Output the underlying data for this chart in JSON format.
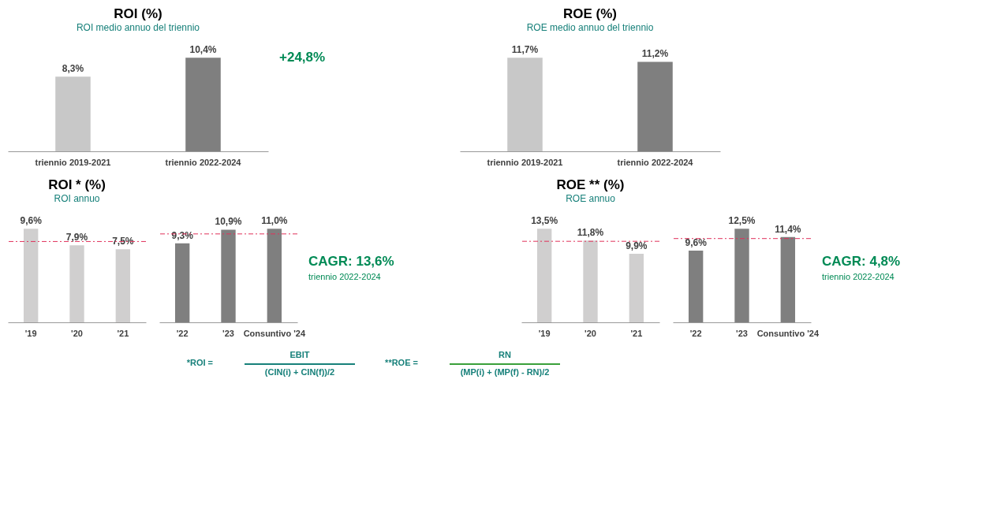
{
  "chart_data": [
    {
      "type": "bar",
      "title": "ROI (%)",
      "subtitle": "ROI medio annuo del triennio",
      "categories": [
        "triennio 2019-2021",
        "triennio 2022-2024"
      ],
      "values": [
        8.3,
        10.4
      ],
      "colors": [
        "#c8c8c8",
        "#7f7f7f"
      ],
      "value_labels": [
        "8,3%",
        "10,4%"
      ],
      "annotations": [
        "+24,8%"
      ]
    },
    {
      "type": "bar",
      "title": "ROE (%)",
      "subtitle": "ROE medio annuo del triennio",
      "categories": [
        "triennio 2019-2021",
        "triennio 2022-2024"
      ],
      "values": [
        11.7,
        11.2
      ],
      "colors": [
        "#c8c8c8",
        "#7f7f7f"
      ],
      "value_labels": [
        "11,7%",
        "11,2%"
      ]
    },
    {
      "type": "bar",
      "title": "ROI * (%)",
      "subtitle": "ROI annuo",
      "categories": [
        "'19",
        "'20",
        "'21"
      ],
      "values": [
        9.6,
        7.9,
        7.5
      ],
      "colors": [
        "#d0cfcf",
        "#d0cfcf",
        "#d0cfcf"
      ],
      "value_labels": [
        "9,6%",
        "7,9%",
        "7,5%"
      ],
      "ref_lines": [
        {
          "axis": "y",
          "value": 8.3,
          "color": "#e0315a",
          "line_style": "dashed"
        }
      ]
    },
    {
      "type": "bar",
      "categories": [
        "'22",
        "'23",
        "Consuntivo '24"
      ],
      "values": [
        9.3,
        10.9,
        11.0
      ],
      "colors": [
        "#7f7f7f",
        "#7f7f7f",
        "#7f7f7f"
      ],
      "value_labels": [
        "9,3%",
        "10,9%",
        "11,0%"
      ],
      "ref_lines": [
        {
          "axis": "y",
          "value": 10.4,
          "color": "#e0315a",
          "line_style": "dashed"
        }
      ],
      "annotations": [
        "CAGR: 13,6%",
        "triennio 2022-2024"
      ]
    },
    {
      "type": "bar",
      "title": "ROE ** (%)",
      "subtitle": "ROE annuo",
      "categories": [
        "'19",
        "'20",
        "'21"
      ],
      "values": [
        13.5,
        11.8,
        9.9
      ],
      "colors": [
        "#d0cfcf",
        "#d0cfcf",
        "#d0cfcf"
      ],
      "value_labels": [
        "13,5%",
        "11,8%",
        "9,9%"
      ],
      "ref_lines": [
        {
          "axis": "y",
          "value": 11.7,
          "color": "#e0315a",
          "line_style": "dashed"
        }
      ]
    },
    {
      "type": "bar",
      "categories": [
        "'22",
        "'23",
        "Consuntivo '24"
      ],
      "values": [
        9.6,
        12.5,
        11.4
      ],
      "colors": [
        "#7f7f7f",
        "#7f7f7f",
        "#7f7f7f"
      ],
      "value_labels": [
        "9,6%",
        "12,5%",
        "11,4%"
      ],
      "ref_lines": [
        {
          "axis": "y",
          "value": 11.2,
          "color": "#e0315a",
          "line_style": "dashed"
        }
      ],
      "annotations": [
        "CAGR: 4,8%",
        "triennio 2022-2024"
      ]
    },
    {
      "type": "other",
      "annotations": [
        "*ROI =",
        "EBIT",
        "(CIN(i) + CIN(f))/2",
        "**ROE =",
        "RN",
        "(MP(i) + (MP(f) - RN)/2"
      ]
    }
  ]
}
